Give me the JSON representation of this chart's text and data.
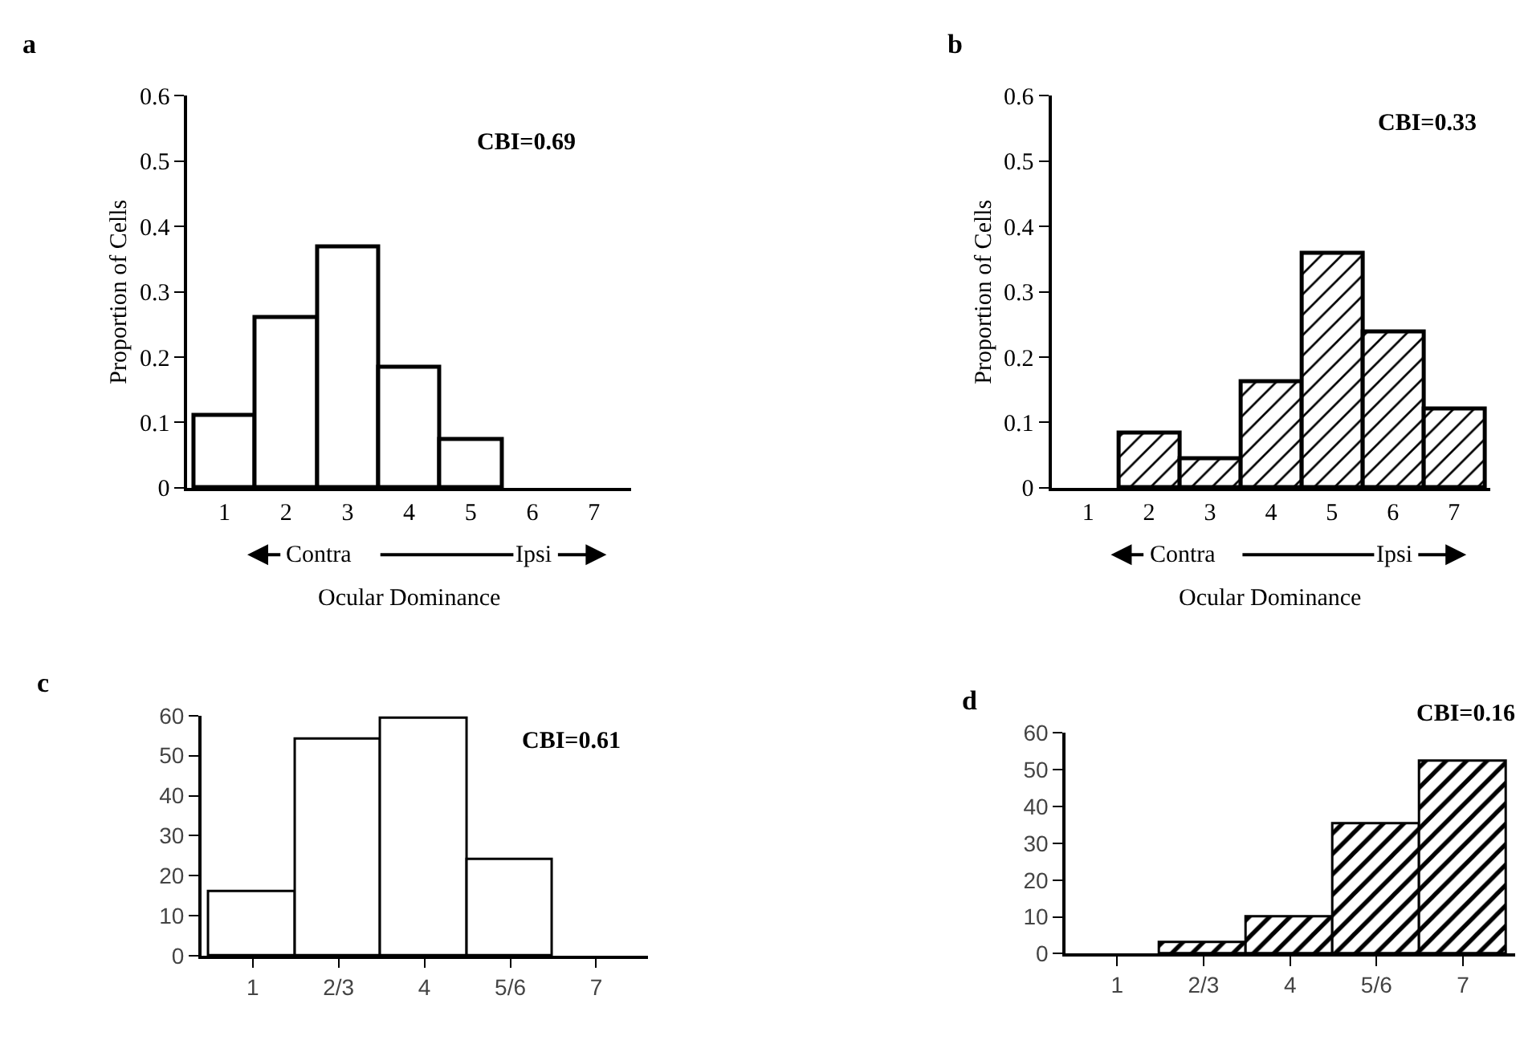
{
  "chart_data": [
    {
      "type": "bar",
      "title": "a",
      "categories": [
        "1",
        "2",
        "3",
        "4",
        "5",
        "6",
        "7"
      ],
      "values": [
        0.11,
        0.26,
        0.37,
        0.185,
        0.075,
        0,
        0
      ],
      "color": "#ffffff",
      "ylim": [
        0,
        0.6
      ],
      "yticks": [
        0,
        0.1,
        0.2,
        0.3,
        0.4,
        0.5,
        0.6
      ],
      "ylabel": "Proportion of Cells",
      "xlabel": "Ocular Dominance",
      "annotations": [
        "CBI=0.69",
        "Contra",
        "Ipsi"
      ]
    },
    {
      "type": "bar",
      "title": "b",
      "categories": [
        "1",
        "2",
        "3",
        "4",
        "5",
        "6",
        "7"
      ],
      "values": [
        0,
        0.083,
        0.045,
        0.163,
        0.36,
        0.24,
        0.122
      ],
      "color": "#000000",
      "ylim": [
        0,
        0.6
      ],
      "yticks": [
        0,
        0.1,
        0.2,
        0.3,
        0.4,
        0.5,
        0.6
      ],
      "ylabel": "Proportion of Cells",
      "xlabel": "Ocular Dominance",
      "annotations": [
        "CBI=0.33",
        "Contra",
        "Ipsi"
      ]
    },
    {
      "type": "bar",
      "title": "c",
      "categories": [
        "1",
        "2/3",
        "4",
        "5/6",
        "7"
      ],
      "values": [
        16,
        54,
        59,
        24,
        0
      ],
      "color": "#ffffff",
      "ylim": [
        0,
        60
      ],
      "yticks": [
        0,
        10,
        20,
        30,
        40,
        50,
        60
      ],
      "annotations": [
        "CBI=0.61"
      ]
    },
    {
      "type": "bar",
      "title": "d",
      "categories": [
        "1",
        "2/3",
        "4",
        "5/6",
        "7"
      ],
      "values": [
        0,
        3,
        10,
        35,
        52
      ],
      "color": "#000000",
      "ylim": [
        0,
        60
      ],
      "yticks": [
        0,
        10,
        20,
        30,
        40,
        50,
        60
      ],
      "annotations": [
        "CBI=0.16"
      ]
    }
  ]
}
